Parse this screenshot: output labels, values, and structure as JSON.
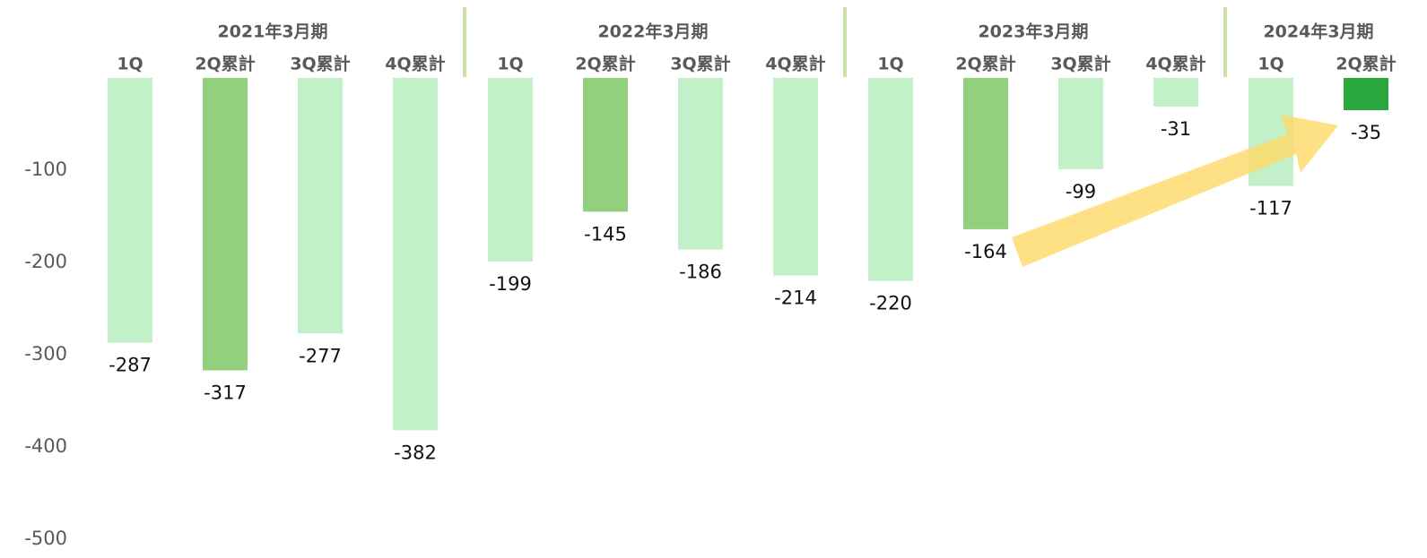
{
  "chart_data": {
    "type": "bar",
    "groups": [
      {
        "label": "2021年3月期",
        "categories": [
          "1Q",
          "2Q累計",
          "3Q累計",
          "4Q累計"
        ],
        "values": [
          -287,
          -317,
          -277,
          -382
        ],
        "colors": [
          "#c2f0c8",
          "#92d07e",
          "#c2f0c8",
          "#c2f0c8"
        ]
      },
      {
        "label": "2022年3月期",
        "categories": [
          "1Q",
          "2Q累計",
          "3Q累計",
          "4Q累計"
        ],
        "values": [
          -199,
          -145,
          -186,
          -214
        ],
        "colors": [
          "#c2f0c8",
          "#92d07e",
          "#c2f0c8",
          "#c2f0c8"
        ]
      },
      {
        "label": "2023年3月期",
        "categories": [
          "1Q",
          "2Q累計",
          "3Q累計",
          "4Q累計"
        ],
        "values": [
          -220,
          -164,
          -99,
          -31
        ],
        "colors": [
          "#c2f0c8",
          "#92d07e",
          "#c2f0c8",
          "#c2f0c8"
        ]
      },
      {
        "label": "2024年3月期",
        "categories": [
          "1Q",
          "2Q累計"
        ],
        "values": [
          -117,
          -35
        ],
        "colors": [
          "#c2f0c8",
          "#2aa83e"
        ]
      }
    ],
    "ylim": [
      -500,
      0
    ],
    "yticks": [
      -100,
      -200,
      -300,
      -400,
      -500
    ]
  }
}
